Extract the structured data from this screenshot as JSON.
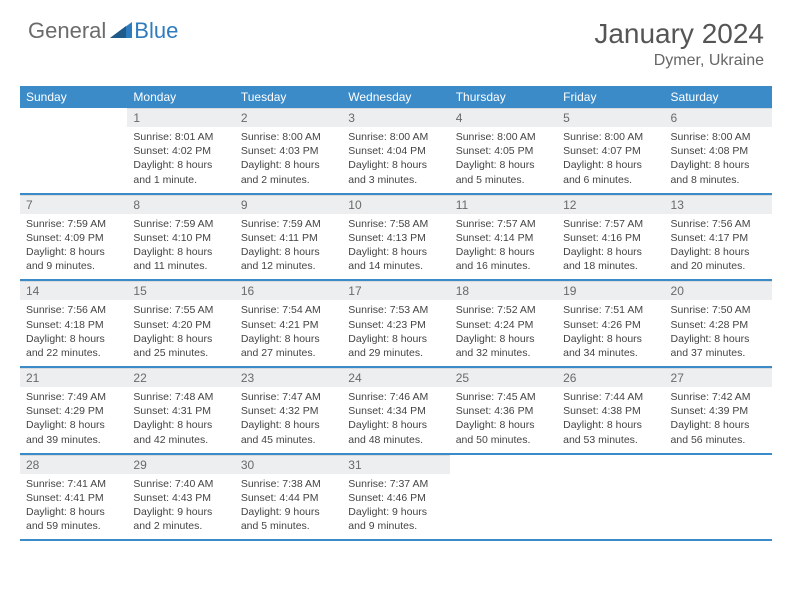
{
  "brand": {
    "part1": "General",
    "part2": "Blue"
  },
  "title": "January 2024",
  "location": "Dymer, Ukraine",
  "colors": {
    "header_bg": "#3b8bc9",
    "daynum_bg": "#eceeef",
    "row_sep": "#3b8bc9",
    "logo_gray": "#6b6b6b",
    "logo_blue": "#2f7bbf"
  },
  "weekdays": [
    "Sunday",
    "Monday",
    "Tuesday",
    "Wednesday",
    "Thursday",
    "Friday",
    "Saturday"
  ],
  "weeks": [
    [
      null,
      {
        "n": "1",
        "sr": "Sunrise: 8:01 AM",
        "ss": "Sunset: 4:02 PM",
        "dl": "Daylight: 8 hours and 1 minute."
      },
      {
        "n": "2",
        "sr": "Sunrise: 8:00 AM",
        "ss": "Sunset: 4:03 PM",
        "dl": "Daylight: 8 hours and 2 minutes."
      },
      {
        "n": "3",
        "sr": "Sunrise: 8:00 AM",
        "ss": "Sunset: 4:04 PM",
        "dl": "Daylight: 8 hours and 3 minutes."
      },
      {
        "n": "4",
        "sr": "Sunrise: 8:00 AM",
        "ss": "Sunset: 4:05 PM",
        "dl": "Daylight: 8 hours and 5 minutes."
      },
      {
        "n": "5",
        "sr": "Sunrise: 8:00 AM",
        "ss": "Sunset: 4:07 PM",
        "dl": "Daylight: 8 hours and 6 minutes."
      },
      {
        "n": "6",
        "sr": "Sunrise: 8:00 AM",
        "ss": "Sunset: 4:08 PM",
        "dl": "Daylight: 8 hours and 8 minutes."
      }
    ],
    [
      {
        "n": "7",
        "sr": "Sunrise: 7:59 AM",
        "ss": "Sunset: 4:09 PM",
        "dl": "Daylight: 8 hours and 9 minutes."
      },
      {
        "n": "8",
        "sr": "Sunrise: 7:59 AM",
        "ss": "Sunset: 4:10 PM",
        "dl": "Daylight: 8 hours and 11 minutes."
      },
      {
        "n": "9",
        "sr": "Sunrise: 7:59 AM",
        "ss": "Sunset: 4:11 PM",
        "dl": "Daylight: 8 hours and 12 minutes."
      },
      {
        "n": "10",
        "sr": "Sunrise: 7:58 AM",
        "ss": "Sunset: 4:13 PM",
        "dl": "Daylight: 8 hours and 14 minutes."
      },
      {
        "n": "11",
        "sr": "Sunrise: 7:57 AM",
        "ss": "Sunset: 4:14 PM",
        "dl": "Daylight: 8 hours and 16 minutes."
      },
      {
        "n": "12",
        "sr": "Sunrise: 7:57 AM",
        "ss": "Sunset: 4:16 PM",
        "dl": "Daylight: 8 hours and 18 minutes."
      },
      {
        "n": "13",
        "sr": "Sunrise: 7:56 AM",
        "ss": "Sunset: 4:17 PM",
        "dl": "Daylight: 8 hours and 20 minutes."
      }
    ],
    [
      {
        "n": "14",
        "sr": "Sunrise: 7:56 AM",
        "ss": "Sunset: 4:18 PM",
        "dl": "Daylight: 8 hours and 22 minutes."
      },
      {
        "n": "15",
        "sr": "Sunrise: 7:55 AM",
        "ss": "Sunset: 4:20 PM",
        "dl": "Daylight: 8 hours and 25 minutes."
      },
      {
        "n": "16",
        "sr": "Sunrise: 7:54 AM",
        "ss": "Sunset: 4:21 PM",
        "dl": "Daylight: 8 hours and 27 minutes."
      },
      {
        "n": "17",
        "sr": "Sunrise: 7:53 AM",
        "ss": "Sunset: 4:23 PM",
        "dl": "Daylight: 8 hours and 29 minutes."
      },
      {
        "n": "18",
        "sr": "Sunrise: 7:52 AM",
        "ss": "Sunset: 4:24 PM",
        "dl": "Daylight: 8 hours and 32 minutes."
      },
      {
        "n": "19",
        "sr": "Sunrise: 7:51 AM",
        "ss": "Sunset: 4:26 PM",
        "dl": "Daylight: 8 hours and 34 minutes."
      },
      {
        "n": "20",
        "sr": "Sunrise: 7:50 AM",
        "ss": "Sunset: 4:28 PM",
        "dl": "Daylight: 8 hours and 37 minutes."
      }
    ],
    [
      {
        "n": "21",
        "sr": "Sunrise: 7:49 AM",
        "ss": "Sunset: 4:29 PM",
        "dl": "Daylight: 8 hours and 39 minutes."
      },
      {
        "n": "22",
        "sr": "Sunrise: 7:48 AM",
        "ss": "Sunset: 4:31 PM",
        "dl": "Daylight: 8 hours and 42 minutes."
      },
      {
        "n": "23",
        "sr": "Sunrise: 7:47 AM",
        "ss": "Sunset: 4:32 PM",
        "dl": "Daylight: 8 hours and 45 minutes."
      },
      {
        "n": "24",
        "sr": "Sunrise: 7:46 AM",
        "ss": "Sunset: 4:34 PM",
        "dl": "Daylight: 8 hours and 48 minutes."
      },
      {
        "n": "25",
        "sr": "Sunrise: 7:45 AM",
        "ss": "Sunset: 4:36 PM",
        "dl": "Daylight: 8 hours and 50 minutes."
      },
      {
        "n": "26",
        "sr": "Sunrise: 7:44 AM",
        "ss": "Sunset: 4:38 PM",
        "dl": "Daylight: 8 hours and 53 minutes."
      },
      {
        "n": "27",
        "sr": "Sunrise: 7:42 AM",
        "ss": "Sunset: 4:39 PM",
        "dl": "Daylight: 8 hours and 56 minutes."
      }
    ],
    [
      {
        "n": "28",
        "sr": "Sunrise: 7:41 AM",
        "ss": "Sunset: 4:41 PM",
        "dl": "Daylight: 8 hours and 59 minutes."
      },
      {
        "n": "29",
        "sr": "Sunrise: 7:40 AM",
        "ss": "Sunset: 4:43 PM",
        "dl": "Daylight: 9 hours and 2 minutes."
      },
      {
        "n": "30",
        "sr": "Sunrise: 7:38 AM",
        "ss": "Sunset: 4:44 PM",
        "dl": "Daylight: 9 hours and 5 minutes."
      },
      {
        "n": "31",
        "sr": "Sunrise: 7:37 AM",
        "ss": "Sunset: 4:46 PM",
        "dl": "Daylight: 9 hours and 9 minutes."
      },
      null,
      null,
      null
    ]
  ]
}
